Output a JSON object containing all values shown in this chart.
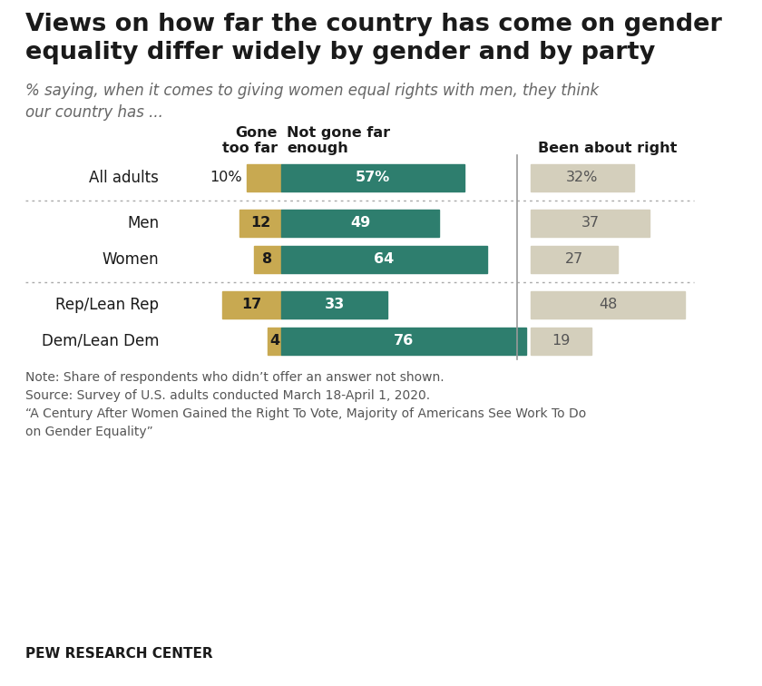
{
  "title": "Views on how far the country has come on gender\nequality differ widely by gender and by party",
  "subtitle": "% saying, when it comes to giving women equal rights with men, they think\nour country has ...",
  "categories": [
    "All adults",
    "Men",
    "Women",
    "Rep/Lean Rep",
    "Dem/Lean Dem"
  ],
  "gone_too_far": [
    10,
    12,
    8,
    17,
    4
  ],
  "not_gone_far_enough": [
    57,
    49,
    64,
    33,
    76
  ],
  "been_about_right": [
    32,
    37,
    27,
    48,
    19
  ],
  "color_gone_too_far": "#C8A951",
  "color_not_gone_far": "#2E7E6E",
  "color_about_right": "#D4CFBC",
  "label_gone_too_far": "Gone\ntoo far",
  "label_not_gone_far": "Not gone far\nenough",
  "label_about_right": "Been about right",
  "note_text": "Note: Share of respondents who didn’t offer an answer not shown.\nSource: Survey of U.S. adults conducted March 18-April 1, 2020.\n“A Century After Women Gained the Right To Vote, Majority of Americans See Work To Do\non Gender Equality”",
  "footer": "PEW RESEARCH CENTER",
  "bg_color": "#FFFFFF",
  "gone_too_far_labels": [
    "10%",
    "12",
    "8",
    "17",
    "4"
  ],
  "not_gone_far_labels": [
    "57%",
    "49",
    "64",
    "33",
    "76"
  ],
  "about_right_labels": [
    "32%",
    "37",
    "27",
    "48",
    "19"
  ]
}
